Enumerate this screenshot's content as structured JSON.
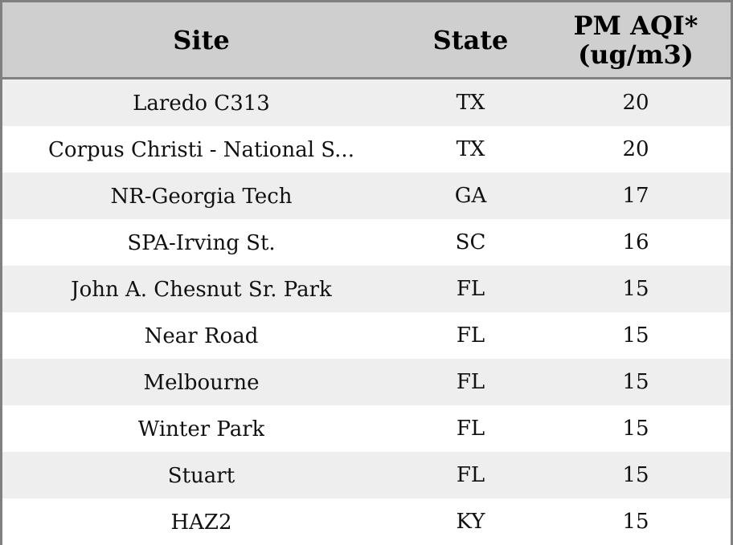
{
  "chart_data": {
    "type": "table",
    "columns": [
      "Site",
      "State",
      "PM AQI*",
      "(ug/m3)"
    ],
    "rows": [
      {
        "site": "Laredo C313",
        "state": "TX",
        "pm": "20"
      },
      {
        "site": "Corpus Christi - National S...",
        "state": "TX",
        "pm": "20"
      },
      {
        "site": "NR-Georgia Tech",
        "state": "GA",
        "pm": "17"
      },
      {
        "site": "SPA-Irving St.",
        "state": "SC",
        "pm": "16"
      },
      {
        "site": "John A. Chesnut Sr. Park",
        "state": "FL",
        "pm": "15"
      },
      {
        "site": "Near Road",
        "state": "FL",
        "pm": "15"
      },
      {
        "site": "Melbourne",
        "state": "FL",
        "pm": "15"
      },
      {
        "site": "Winter Park",
        "state": "FL",
        "pm": "15"
      },
      {
        "site": "Stuart",
        "state": "FL",
        "pm": "15"
      },
      {
        "site": "HAZ2",
        "state": "KY",
        "pm": "15"
      }
    ],
    "colors": {
      "header_bg": "#cfcfcf",
      "row_alt_bg": "#eeeeee",
      "row_bg": "#ffffff",
      "border": "#808080"
    }
  }
}
